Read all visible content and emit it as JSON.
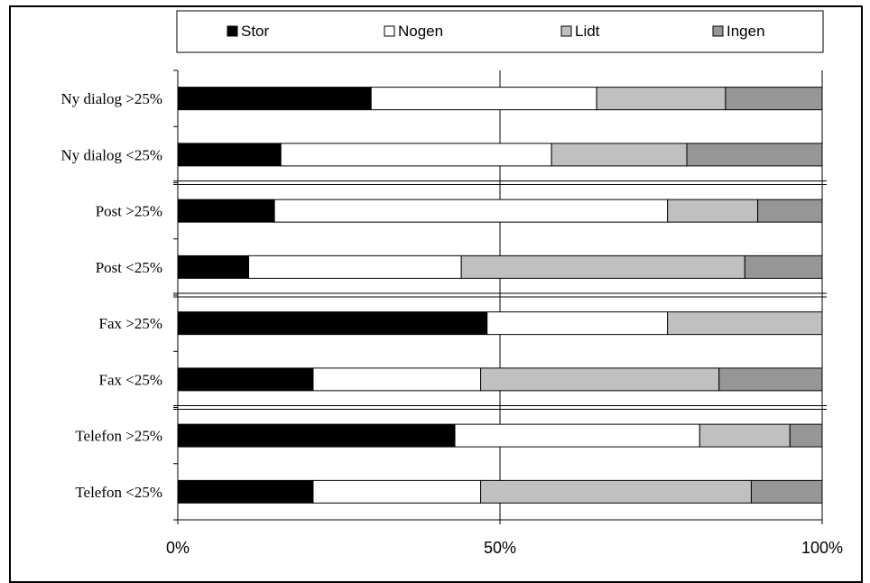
{
  "chart_data": {
    "type": "bar",
    "orientation": "horizontal",
    "stacked": "percent",
    "categories": [
      "Ny dialog >25%",
      "Ny dialog <25%",
      "Post >25%",
      "Post <25%",
      "Fax >25%",
      "Fax <25%",
      "Telefon >25%",
      "Telefon <25%"
    ],
    "series": [
      {
        "name": "Stor",
        "color": "#000000",
        "values": [
          30,
          16,
          15,
          11,
          48,
          21,
          43,
          21
        ]
      },
      {
        "name": "Nogen",
        "color": "#ffffff",
        "values": [
          35,
          42,
          61,
          33,
          28,
          26,
          38,
          26
        ]
      },
      {
        "name": "Lidt",
        "color": "#c0c0c0",
        "values": [
          20,
          21,
          14,
          44,
          24,
          37,
          14,
          42
        ]
      },
      {
        "name": "Ingen",
        "color": "#969696",
        "values": [
          15,
          21,
          10,
          12,
          0,
          16,
          5,
          11
        ]
      }
    ],
    "x_ticks": [
      "0%",
      "50%",
      "100%"
    ],
    "xlim": [
      0,
      100
    ],
    "legend": "top",
    "grid": "vertical major"
  }
}
